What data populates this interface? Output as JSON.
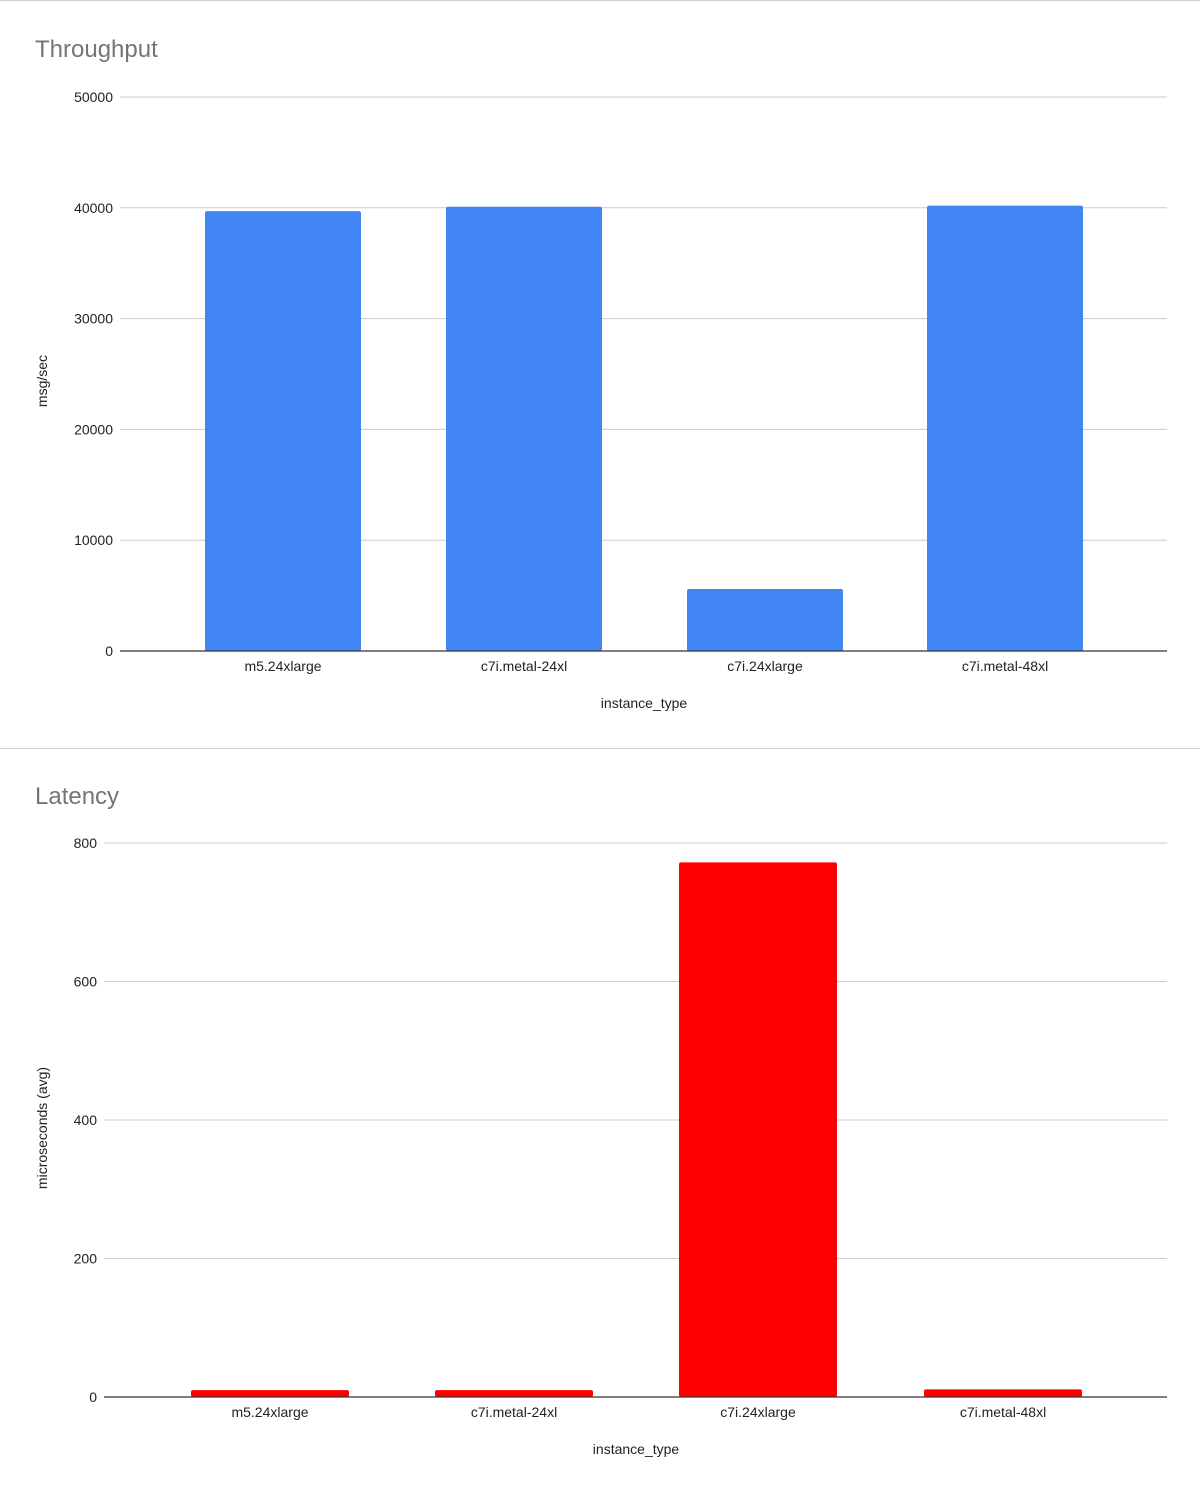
{
  "chart_data": [
    {
      "type": "bar",
      "title": "Throughput",
      "xlabel": "instance_type",
      "ylabel": "msg/sec",
      "categories": [
        "m5.24xlarge",
        "c7i.metal-24xl",
        "c7i.24xlarge",
        "c7i.metal-48xl"
      ],
      "values": [
        39700,
        40100,
        5600,
        40200
      ],
      "ylim": [
        0,
        50000
      ],
      "yticks": [
        0,
        10000,
        20000,
        30000,
        40000,
        50000
      ],
      "color": "#4285f4",
      "grid": true
    },
    {
      "type": "bar",
      "title": "Latency",
      "xlabel": "instance_type",
      "ylabel": "microseconds (avg)",
      "categories": [
        "m5.24xlarge",
        "c7i.metal-24xl",
        "c7i.24xlarge",
        "c7i.metal-48xl"
      ],
      "values": [
        10,
        10,
        772,
        11
      ],
      "ylim": [
        0,
        800
      ],
      "yticks": [
        0,
        200,
        400,
        600,
        800
      ],
      "color": "#ff0000",
      "grid": true
    }
  ]
}
